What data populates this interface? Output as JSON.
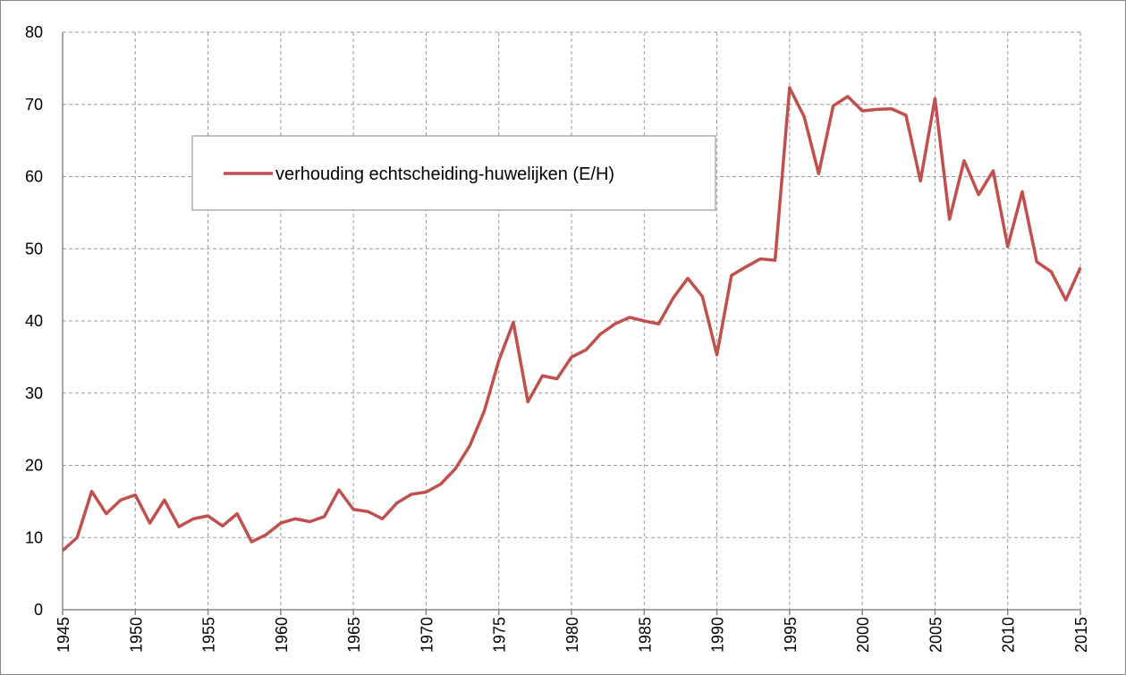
{
  "chart_data": {
    "type": "line",
    "x": [
      1945,
      1946,
      1947,
      1948,
      1949,
      1950,
      1951,
      1952,
      1953,
      1954,
      1955,
      1956,
      1957,
      1958,
      1959,
      1960,
      1961,
      1962,
      1963,
      1964,
      1965,
      1966,
      1967,
      1968,
      1969,
      1970,
      1971,
      1972,
      1973,
      1974,
      1975,
      1976,
      1977,
      1978,
      1979,
      1980,
      1981,
      1982,
      1983,
      1984,
      1985,
      1986,
      1987,
      1988,
      1989,
      1990,
      1991,
      1992,
      1993,
      1994,
      1995,
      1996,
      1997,
      1998,
      1999,
      2000,
      2001,
      2002,
      2003,
      2004,
      2005,
      2006,
      2007,
      2008,
      2009,
      2010,
      2011,
      2012,
      2013,
      2014,
      2015
    ],
    "series": [
      {
        "name": "verhouding echtscheiding-huwelijken (E/H)",
        "color": "#c0504d",
        "values": [
          8.2,
          10,
          16.4,
          13.3,
          15.2,
          15.9,
          12,
          15.2,
          11.5,
          12.6,
          13,
          11.6,
          13.3,
          9.4,
          10.4,
          12,
          12.6,
          12.2,
          12.9,
          16.6,
          13.9,
          13.6,
          12.6,
          14.8,
          16,
          16.3,
          17.4,
          19.5,
          22.7,
          27.5,
          34.5,
          39.8,
          28.8,
          32.4,
          32,
          35,
          36,
          38.2,
          39.6,
          40.5,
          40,
          39.6,
          43.2,
          45.9,
          43.4,
          35.3,
          46.3,
          47.5,
          48.6,
          48.4,
          72.3,
          68.3,
          60.4,
          69.8,
          71.1,
          69.1,
          69.3,
          69.4,
          68.5,
          59.4,
          70.8,
          54.1,
          62.2,
          57.5,
          60.8,
          50.3,
          57.9,
          48.2,
          46.8,
          42.9,
          47.4
        ]
      }
    ],
    "xlim": [
      1945,
      2015
    ],
    "xticks": [
      1945,
      1950,
      1955,
      1960,
      1965,
      1970,
      1975,
      1980,
      1985,
      1990,
      1995,
      2000,
      2005,
      2010,
      2015
    ],
    "ylim": [
      0,
      80
    ],
    "yticks": [
      0,
      10,
      20,
      30,
      40,
      50,
      60,
      70,
      80
    ],
    "grid": true
  }
}
